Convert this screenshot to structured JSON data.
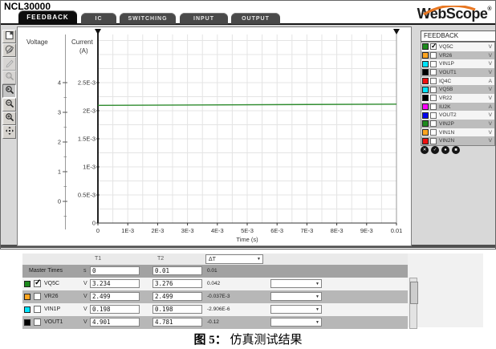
{
  "window": {
    "title": "NCL30000"
  },
  "brand": {
    "name": "WebScope",
    "reg": "®"
  },
  "tabs": [
    {
      "label": "FEEDBACK",
      "active": true
    },
    {
      "label": "IC",
      "active": false
    },
    {
      "label": "SWITCHING",
      "active": false
    },
    {
      "label": "INPUT",
      "active": false
    },
    {
      "label": "OUTPUT",
      "active": false
    }
  ],
  "toolbar": {
    "buttons": [
      {
        "name": "report-button",
        "icon": "report-icon",
        "state": "normal"
      },
      {
        "name": "draw-button",
        "icon": "draw-icon",
        "state": "normal"
      },
      {
        "name": "edit-button",
        "icon": "edit-icon",
        "state": "disabled"
      },
      {
        "name": "zoom-region-button",
        "icon": "zoom-region-icon",
        "state": "disabled"
      },
      {
        "name": "zoom-previous-button",
        "icon": "zoom-previous-icon",
        "state": "active"
      },
      {
        "name": "zoom-out-button",
        "icon": "zoom-out-icon",
        "state": "normal"
      },
      {
        "name": "zoom-in-button",
        "icon": "zoom-in-icon",
        "state": "normal"
      },
      {
        "name": "pan-button",
        "icon": "pan-icon",
        "state": "normal"
      }
    ]
  },
  "plot": {
    "voltage_axis": {
      "label": "Voltage",
      "ticks": [
        "4",
        "3",
        "2",
        "1",
        "0"
      ]
    },
    "current_axis": {
      "label_line1": "Current",
      "label_line2": "(A)",
      "ticks": [
        "2.5E-3",
        "2E-3",
        "1.5E-3",
        "1E-3",
        "0.5E-3",
        "0"
      ]
    },
    "x_axis": {
      "label": "Time (s)",
      "ticks": [
        "0",
        "1E-3",
        "2E-3",
        "3E-3",
        "4E-3",
        "5E-3",
        "6E-3",
        "7E-3",
        "8E-3",
        "9E-3",
        "0.01"
      ]
    }
  },
  "chart_data": {
    "type": "line",
    "title": "",
    "xlabel": "Time (s)",
    "xlim": [
      0,
      0.01
    ],
    "x_ticks": [
      "0",
      "1E-3",
      "2E-3",
      "3E-3",
      "4E-3",
      "5E-3",
      "6E-3",
      "7E-3",
      "8E-3",
      "9E-3",
      "0.01"
    ],
    "grid": true,
    "legend_position": "right-panel",
    "y_axes": [
      {
        "label": "Voltage",
        "ticks": [
          4,
          3,
          2,
          1,
          0
        ],
        "visible_range_approx": [
          -0.73,
          5.6
        ]
      },
      {
        "label": "Current (A)",
        "ticks": [
          "2.5E-3",
          "2E-3",
          "1.5E-3",
          "1E-3",
          "0.5E-3",
          "0"
        ],
        "visible_range_approx": [
          0,
          0.00335
        ]
      }
    ],
    "time_markers": [
      0,
      0.01
    ],
    "series": [
      {
        "name": "VQ5C",
        "axis": "Voltage",
        "color": "#2e8b2e",
        "x": [
          0,
          0.01
        ],
        "values": [
          3.234,
          3.276
        ],
        "shape": "nearly flat horizontal line"
      }
    ]
  },
  "sidebar": {
    "header": "FEEDBACK",
    "signals": [
      {
        "name": "VQ5C",
        "color": "#1d8a1d",
        "unit": "V",
        "checked": true,
        "shaded": false
      },
      {
        "name": "VR26",
        "color": "#ffa520",
        "unit": "V",
        "checked": false,
        "shaded": true
      },
      {
        "name": "VIN1P",
        "color": "#00e5ff",
        "unit": "V",
        "checked": false,
        "shaded": false
      },
      {
        "name": "VOUT1",
        "color": "#000000",
        "unit": "V",
        "checked": false,
        "shaded": true
      },
      {
        "name": "IQ4C",
        "color": "#ee1111",
        "unit": "A",
        "checked": false,
        "shaded": false
      },
      {
        "name": "VQ5B",
        "color": "#00e5ff",
        "unit": "V",
        "checked": false,
        "shaded": true
      },
      {
        "name": "VR22",
        "color": "#000000",
        "unit": "V",
        "checked": false,
        "shaded": false
      },
      {
        "name": "IU2K",
        "color": "#ff00ff",
        "unit": "A",
        "checked": false,
        "shaded": true
      },
      {
        "name": "VOUT2",
        "color": "#0000ee",
        "unit": "V",
        "checked": false,
        "shaded": false
      },
      {
        "name": "VIN2P",
        "color": "#1d8a1d",
        "unit": "V",
        "checked": false,
        "shaded": true
      },
      {
        "name": "VIN1N",
        "color": "#ffa520",
        "unit": "V",
        "checked": false,
        "shaded": false
      },
      {
        "name": "VIN2N",
        "color": "#ee1111",
        "unit": "V",
        "checked": false,
        "shaded": true
      }
    ],
    "marker_buttons": [
      {
        "name": "marker-button-1",
        "glyph": "✕"
      },
      {
        "name": "marker-button-2",
        "glyph": "✓"
      },
      {
        "name": "marker-button-3",
        "glyph": "●"
      },
      {
        "name": "marker-button-4",
        "glyph": "■"
      }
    ]
  },
  "table": {
    "headers": {
      "t1": "T1",
      "t2": "T2",
      "dt": "ΔT"
    },
    "master_row": {
      "label": "Master Times",
      "unit": "s",
      "t1": "0",
      "t2": "0.01",
      "dt": "0.01"
    },
    "rows": [
      {
        "name": "VQ5C",
        "color": "#1d8a1d",
        "unit": "V",
        "checked": true,
        "t1": "3.234",
        "t2": "3.276",
        "dt": "0.042"
      },
      {
        "name": "VR26",
        "color": "#ffa520",
        "unit": "V",
        "checked": false,
        "t1": "2.499",
        "t2": "2.499",
        "dt": "-0.037E-3"
      },
      {
        "name": "VIN1P",
        "color": "#00e5ff",
        "unit": "V",
        "checked": false,
        "t1": "0.198",
        "t2": "0.198",
        "dt": "-2.906E-6"
      },
      {
        "name": "VOUT1",
        "color": "#000000",
        "unit": "V",
        "checked": false,
        "t1": "4.901",
        "t2": "4.781",
        "dt": "-0.12"
      }
    ]
  },
  "icons": {
    "dropdown_arrow": "▼",
    "checkmark": "✓"
  },
  "caption": {
    "prefix": "图 5：",
    "text": "仿真测试结果"
  }
}
